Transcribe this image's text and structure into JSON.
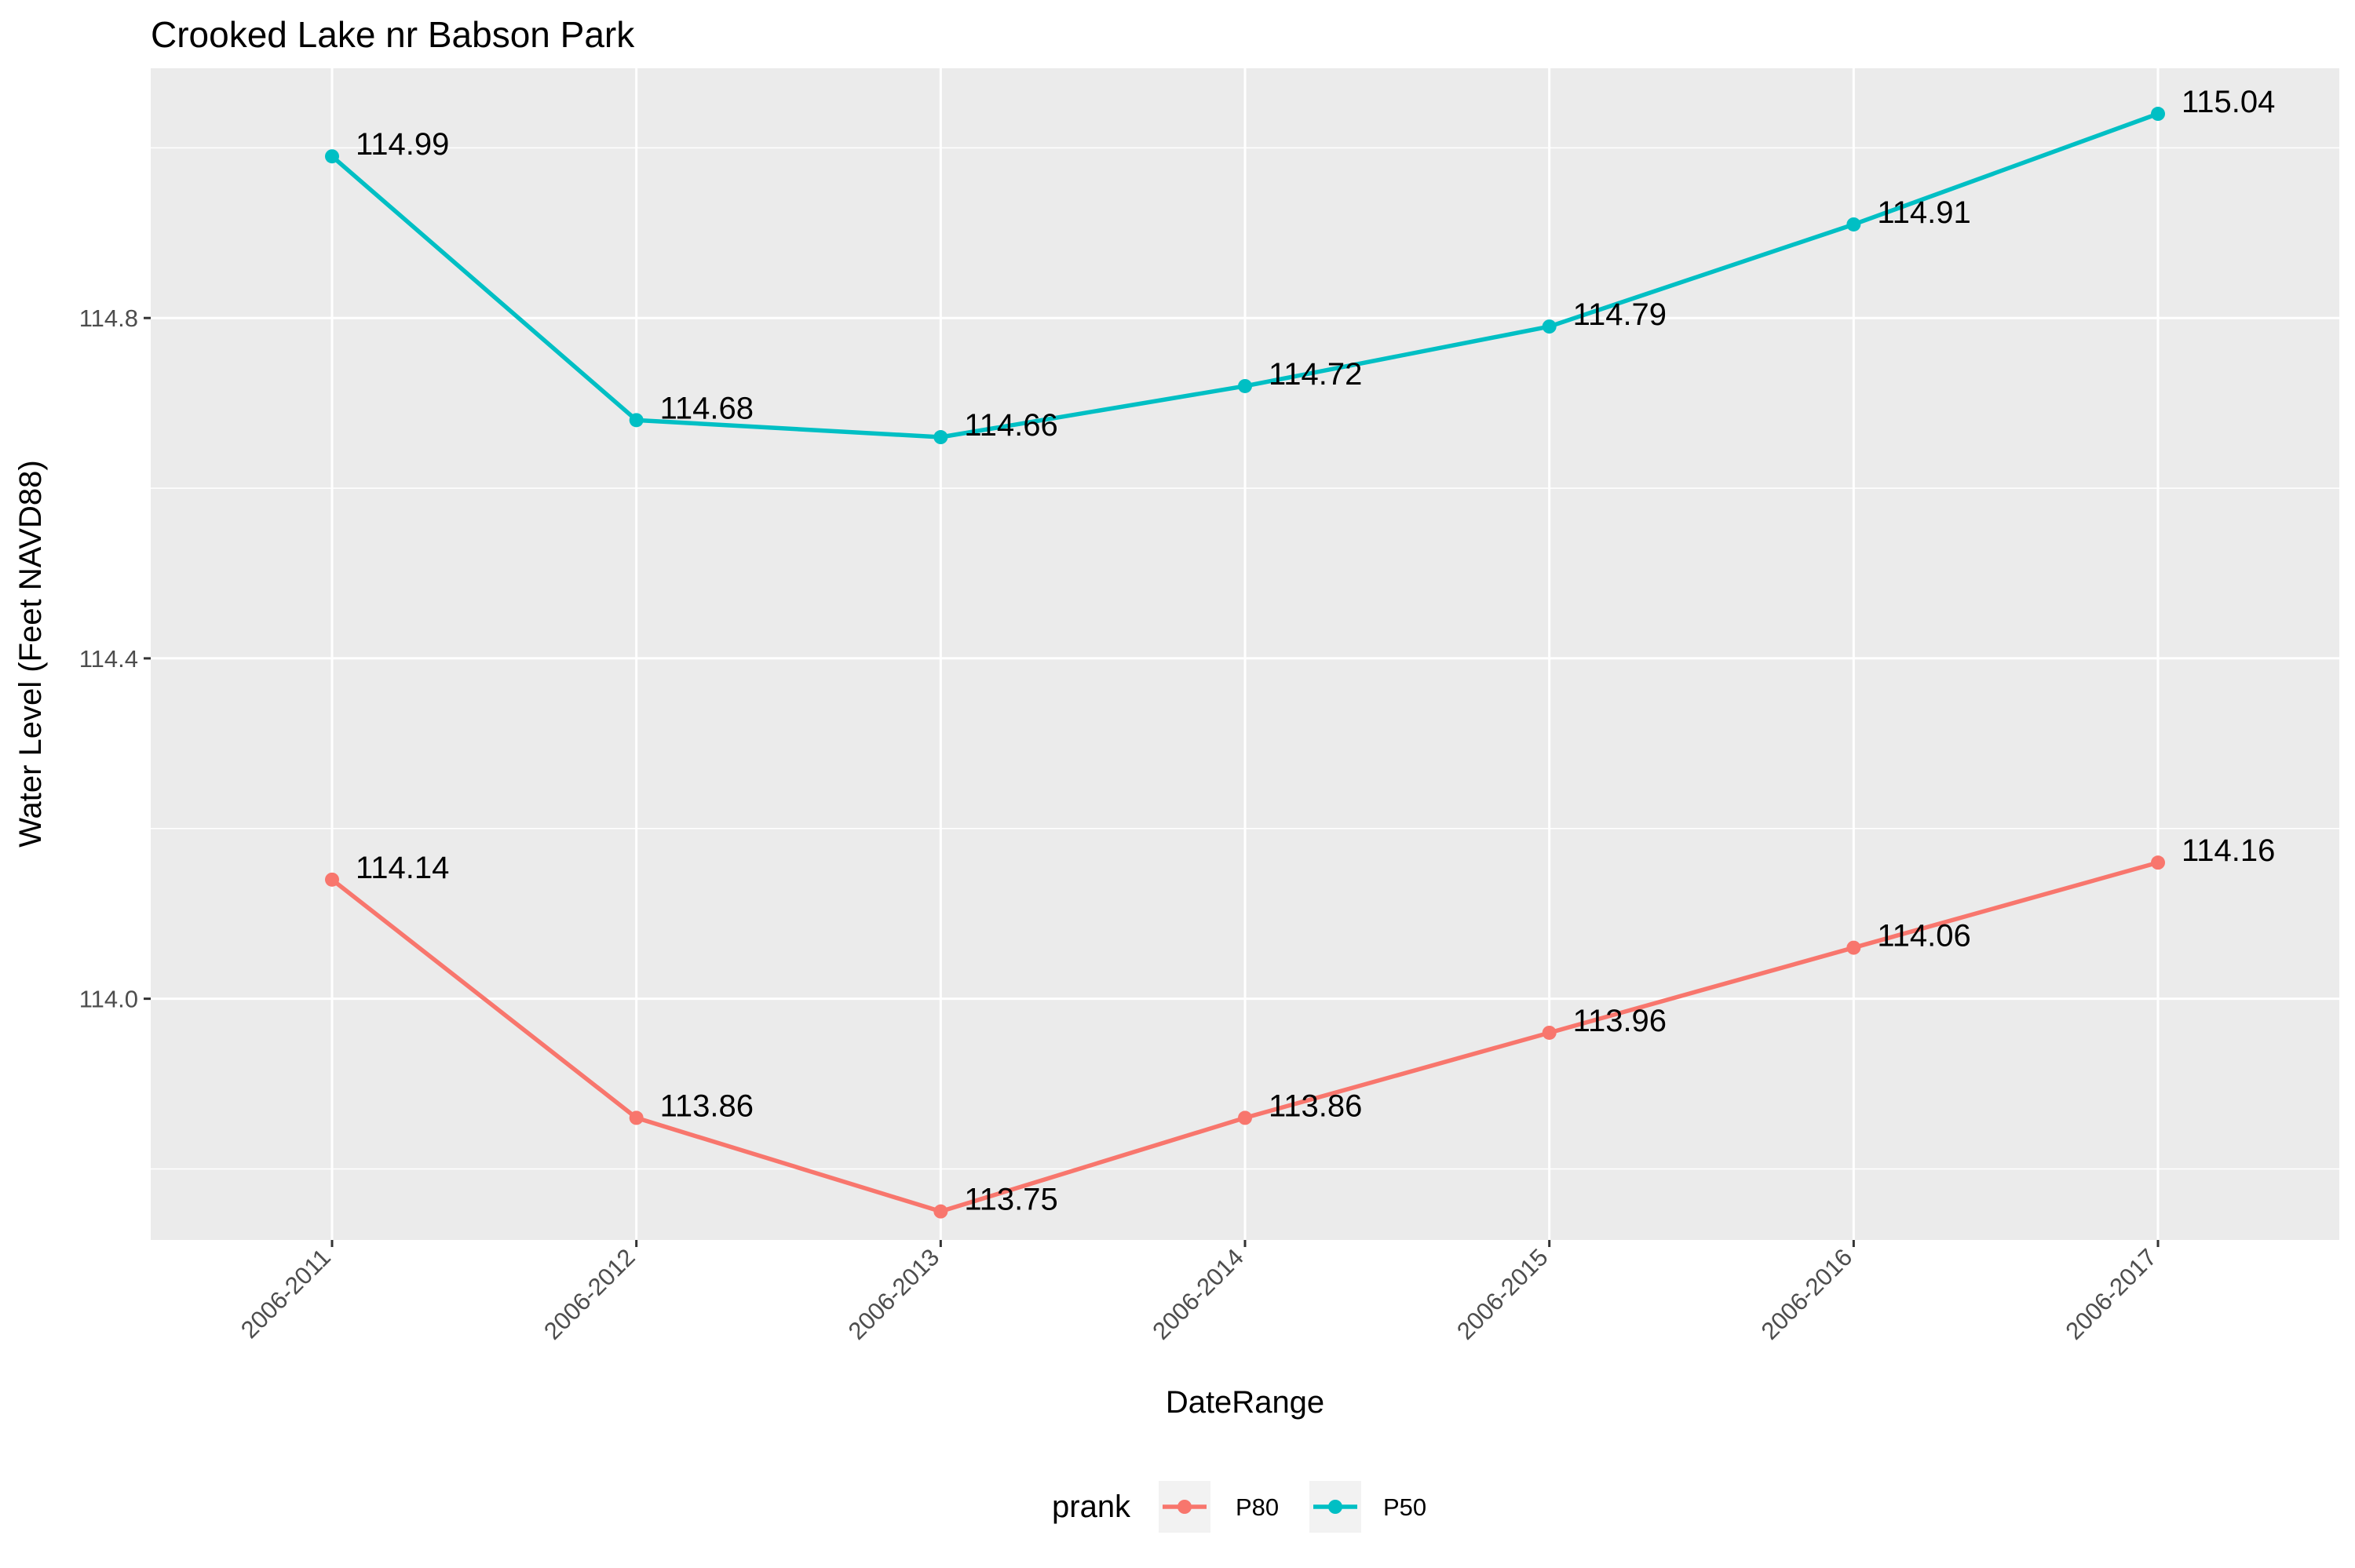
{
  "chart_data": {
    "type": "line",
    "title": "Crooked Lake nr Babson Park",
    "xlabel": "DateRange",
    "ylabel": "Water Level (Feet NAVD88)",
    "categories": [
      "2006-2011",
      "2006-2012",
      "2006-2013",
      "2006-2014",
      "2006-2015",
      "2006-2016",
      "2006-2017"
    ],
    "series": [
      {
        "name": "P80",
        "color": "#F8766D",
        "values": [
          114.14,
          113.86,
          113.75,
          113.86,
          113.96,
          114.06,
          114.16
        ],
        "labels": [
          "114.14",
          "113.86",
          "113.75",
          "113.86",
          "113.96",
          "114.06",
          "114.16"
        ]
      },
      {
        "name": "P50",
        "color": "#00BFC4",
        "values": [
          114.99,
          114.68,
          114.66,
          114.72,
          114.79,
          114.91,
          115.04
        ],
        "labels": [
          "114.99",
          "114.68",
          "114.66",
          "114.72",
          "114.79",
          "114.91",
          "115.04"
        ]
      }
    ],
    "yticks": [
      114.0,
      114.4,
      114.8
    ],
    "ytick_labels": [
      "114.0",
      "114.4",
      "114.8"
    ],
    "yminor": [
      114.2,
      114.6,
      115.0
    ],
    "ylim": [
      113.7165,
      115.0935
    ],
    "legend": {
      "title": "prank",
      "position": "bottom"
    },
    "panel_background": "#EBEBEB",
    "grid": true
  }
}
